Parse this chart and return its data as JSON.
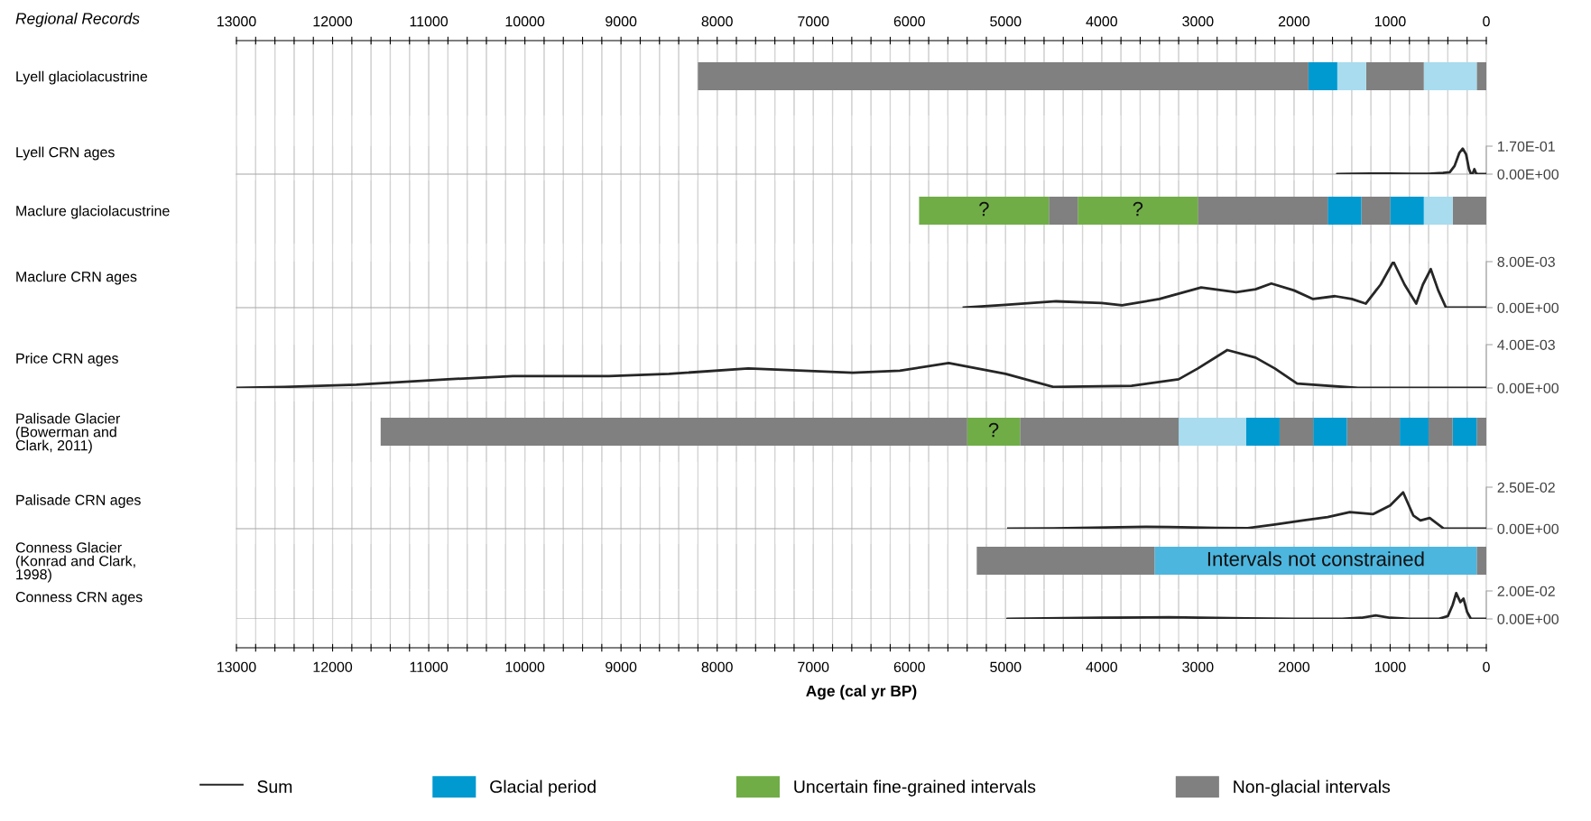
{
  "chart_data": [
    {
      "type": "bar",
      "title": "Regional Records",
      "legend": "bottom",
      "orientation": "horizontal",
      "stacked": true,
      "categories": [
        "Lyell glaciolacustrine"
      ],
      "xlim": [
        13000,
        0
      ],
      "x2lim": [
        13000,
        0
      ],
      "grid": "x",
      "x2ticks": [
        13000,
        {
          "value": 12800,
          "label": null
        },
        {
          "value": 12600,
          "label": null
        },
        {
          "value": 12400,
          "label": null
        },
        {
          "value": 12200,
          "label": null
        },
        12000,
        {
          "value": 11800,
          "label": null
        },
        {
          "value": 11600,
          "label": null
        },
        {
          "value": 11400,
          "label": null
        },
        {
          "value": 11200,
          "label": null
        },
        11000,
        {
          "value": 10800,
          "label": null
        },
        {
          "value": 10600,
          "label": null
        },
        {
          "value": 10400,
          "label": null
        },
        {
          "value": 10200,
          "label": null
        },
        10000,
        {
          "value": 9800,
          "label": null
        },
        {
          "value": 9600,
          "label": null
        },
        {
          "value": 9400,
          "label": null
        },
        {
          "value": 9200,
          "label": null
        },
        9000,
        {
          "value": 8800,
          "label": null
        },
        {
          "value": 8600,
          "label": null
        },
        {
          "value": 8400,
          "label": null
        },
        {
          "value": 8200,
          "label": null
        },
        8000,
        {
          "value": 7800,
          "label": null
        },
        {
          "value": 7600,
          "label": null
        },
        {
          "value": 7400,
          "label": null
        },
        {
          "value": 7200,
          "label": null
        },
        7000,
        {
          "value": 6800,
          "label": null
        },
        {
          "value": 6600,
          "label": null
        },
        {
          "value": 6400,
          "label": null
        },
        {
          "value": 6200,
          "label": null
        },
        6000,
        {
          "value": 5800,
          "label": null
        },
        {
          "value": 5600,
          "label": null
        },
        {
          "value": 5400,
          "label": null
        },
        {
          "value": 5200,
          "label": null
        },
        5000,
        {
          "value": 4800,
          "label": null
        },
        {
          "value": 4600,
          "label": null
        },
        {
          "value": 4400,
          "label": null
        },
        {
          "value": 4200,
          "label": null
        },
        4000,
        {
          "value": 3800,
          "label": null
        },
        {
          "value": 3600,
          "label": null
        },
        {
          "value": 3400,
          "label": null
        },
        {
          "value": 3200,
          "label": null
        },
        3000,
        {
          "value": 2800,
          "label": null
        },
        {
          "value": 2600,
          "label": null
        },
        {
          "value": 2400,
          "label": null
        },
        {
          "value": 2200,
          "label": null
        },
        2000,
        {
          "value": 1800,
          "label": null
        },
        {
          "value": 1600,
          "label": null
        },
        {
          "value": 1400,
          "label": null
        },
        {
          "value": 1200,
          "label": null
        },
        1000,
        {
          "value": 800,
          "label": null
        },
        {
          "value": 600,
          "label": null
        },
        {
          "value": 400,
          "label": null
        },
        {
          "value": 200,
          "label": null
        },
        0
      ],
      "series": [
        {
          "color": "#808080",
          "values": [
            100
          ]
        },
        {
          "color": "#a8dcee",
          "values": [
            550
          ]
        },
        {
          "color": "#808080",
          "values": [
            600
          ]
        },
        {
          "color": "#a8dcee",
          "values": [
            300
          ]
        },
        {
          "name": "Glacial period",
          "color": "#0099d0",
          "values": [
            300
          ]
        },
        {
          "color": "#808080",
          "values": [
            6350
          ]
        }
      ]
    },
    {
      "type": "line",
      "ylabel": "Lyell CRN ages",
      "xlim": [
        13000,
        0
      ],
      "ylim": [
        0,
        0.17
      ],
      "yticks": [
        {
          "value": 0,
          "label": "0.00E+00"
        },
        {
          "value": 0.17,
          "label": "1.70E-01"
        }
      ],
      "grid": "x",
      "tick_labels": "y",
      "xticks": [
        13000,
        12800,
        12600,
        12400,
        12200,
        12000,
        11800,
        11600,
        11400,
        11200,
        11000,
        10800,
        10600,
        10400,
        10200,
        10000,
        9800,
        9600,
        9400,
        9200,
        9000,
        8800,
        8600,
        8400,
        8200,
        8000,
        7800,
        7600,
        7400,
        7200,
        7000,
        6800,
        6600,
        6400,
        6200,
        6000,
        5800,
        5600,
        5400,
        5200,
        5000,
        4800,
        4600,
        4400,
        4200,
        4000,
        3800,
        3600,
        3400,
        3200,
        3000,
        2800,
        2600,
        2400,
        2200,
        2000,
        1800,
        1600,
        1400,
        1200,
        1000,
        800,
        600,
        400,
        200,
        0
      ],
      "x": [
        1550,
        1400,
        1200,
        1000,
        800,
        600,
        450,
        380,
        330,
        280,
        245,
        210,
        180,
        160,
        140,
        124,
        105,
        80,
        0
      ],
      "series": [
        {
          "name": "Sum",
          "color": "#262626",
          "values": [
            0,
            0.002,
            0.003,
            0.003,
            0.002,
            0.002,
            0.008,
            0.012,
            0.05,
            0.13,
            0.155,
            0.12,
            0.03,
            0.002,
            0.005,
            0.03,
            0.003,
            0,
            0
          ]
        }
      ]
    },
    {
      "type": "bar",
      "orientation": "horizontal",
      "stacked": true,
      "categories": [
        "Maclure glaciolacustrine"
      ],
      "xlim": [
        13000,
        0
      ],
      "grid": "x",
      "tick_labels": "y",
      "xticks": [
        13000,
        12800,
        12600,
        12400,
        12200,
        12000,
        11800,
        11600,
        11400,
        11200,
        11000,
        10800,
        10600,
        10400,
        10200,
        10000,
        9800,
        9600,
        9400,
        9200,
        9000,
        8800,
        8600,
        8400,
        8200,
        8000,
        7800,
        7600,
        7400,
        7200,
        7000,
        6800,
        6600,
        6400,
        6200,
        6000,
        5800,
        5600,
        5400,
        5200,
        5000,
        4800,
        4600,
        4400,
        4200,
        4000,
        3800,
        3600,
        3400,
        3200,
        3000,
        2800,
        2600,
        2400,
        2200,
        2000,
        1800,
        1600,
        1400,
        1200,
        1000,
        800,
        600,
        400,
        200,
        0
      ],
      "series": [
        {
          "color": "#808080",
          "values": [
            350
          ]
        },
        {
          "color": "#a8dcee",
          "values": [
            300
          ]
        },
        {
          "color": "#0099d0",
          "values": [
            350
          ]
        },
        {
          "color": "#808080",
          "values": [
            300
          ]
        },
        {
          "color": "#0099d0",
          "values": [
            350
          ]
        },
        {
          "color": "#808080",
          "values": [
            1350
          ]
        },
        {
          "name": "Uncertain fine-grained intervals",
          "color": "#70ad47",
          "values": [
            1250
          ],
          "value_labels": [
            "?"
          ]
        },
        {
          "color": "#808080",
          "values": [
            300
          ]
        },
        {
          "color": "#70ad47",
          "values": [
            1350
          ],
          "value_labels": [
            "?"
          ]
        }
      ]
    },
    {
      "type": "line",
      "ylabel": "Maclure CRN ages",
      "xlim": [
        13000,
        0
      ],
      "ylim": [
        0,
        0.008
      ],
      "yticks": [
        {
          "value": 0,
          "label": "0.00E+00"
        },
        {
          "value": 0.008,
          "label": "8.00E-03"
        }
      ],
      "grid": "x",
      "tick_labels": "y",
      "xticks": [
        13000,
        12800,
        12600,
        12400,
        12200,
        12000,
        11800,
        11600,
        11400,
        11200,
        11000,
        10800,
        10600,
        10400,
        10200,
        10000,
        9800,
        9600,
        9400,
        9200,
        9000,
        8800,
        8600,
        8400,
        8200,
        8000,
        7800,
        7600,
        7400,
        7200,
        7000,
        6800,
        6600,
        6400,
        6200,
        6000,
        5800,
        5600,
        5400,
        5200,
        5000,
        4800,
        4600,
        4400,
        4200,
        4000,
        3800,
        3600,
        3400,
        3200,
        3000,
        2800,
        2600,
        2400,
        2200,
        2000,
        1800,
        1600,
        1400,
        1200,
        1000,
        800,
        600,
        400,
        200,
        0
      ],
      "x": [
        5435,
        5000,
        4474,
        4000,
        3789,
        3400,
        2966,
        2602,
        2400,
        2236,
        2000,
        1802,
        1574,
        1400,
        1254,
        1100,
        967,
        850,
        729,
        660,
        578,
        500,
        419,
        0
      ],
      "series": [
        {
          "color": "#262626",
          "values": [
            0,
            0.0005,
            0.0011,
            0.0008,
            0.0004,
            0.0015,
            0.0035,
            0.0027,
            0.0032,
            0.0042,
            0.003,
            0.0015,
            0.002,
            0.0015,
            0.0007,
            0.004,
            0.008,
            0.004,
            0.0007,
            0.004,
            0.0067,
            0.003,
            0,
            0
          ]
        }
      ]
    },
    {
      "type": "line",
      "ylabel": "Price CRN ages",
      "xlim": [
        13000,
        0
      ],
      "ylim": [
        0,
        0.004
      ],
      "yticks": [
        {
          "value": 0,
          "label": "0.00E+00"
        },
        {
          "value": 0.004,
          "label": "4.00E-03"
        }
      ],
      "grid": "x",
      "tick_labels": "y",
      "xticks": [
        13000,
        12800,
        12600,
        12400,
        12200,
        12000,
        11800,
        11600,
        11400,
        11200,
        11000,
        10800,
        10600,
        10400,
        10200,
        10000,
        9800,
        9600,
        9400,
        9200,
        9000,
        8800,
        8600,
        8400,
        8200,
        8000,
        7800,
        7600,
        7400,
        7200,
        7000,
        6800,
        6600,
        6400,
        6200,
        6000,
        5800,
        5600,
        5400,
        5200,
        5000,
        4800,
        4600,
        4400,
        4200,
        4000,
        3800,
        3600,
        3400,
        3200,
        3000,
        2800,
        2600,
        2400,
        2200,
        2000,
        1800,
        1600,
        1400,
        1200,
        1000,
        800,
        600,
        400,
        200,
        0
      ],
      "x": [
        13000,
        12500,
        11750,
        10800,
        10123,
        9126,
        8500,
        7676,
        7100,
        6589,
        6100,
        5592,
        5000,
        4505,
        3690,
        3200,
        3000,
        2694,
        2400,
        2200,
        1968,
        1335,
        0
      ],
      "series": [
        {
          "color": "#262626",
          "values": [
            0,
            0.0001,
            0.0003,
            0.0008,
            0.0011,
            0.0011,
            0.0013,
            0.0018,
            0.0016,
            0.0014,
            0.0016,
            0.0023,
            0.0013,
            0.0001,
            0.0002,
            0.0008,
            0.0018,
            0.0035,
            0.0028,
            0.0018,
            0.0004,
            0,
            0
          ]
        }
      ]
    },
    {
      "type": "bar",
      "orientation": "horizontal",
      "stacked": true,
      "categories": [
        "Palisade Glacier\n(Bowerman and\nClark, 2011)"
      ],
      "xlim": [
        13000,
        0
      ],
      "grid": "x",
      "tick_labels": "y",
      "xticks": [
        13000,
        12800,
        12600,
        12400,
        12200,
        12000,
        11800,
        11600,
        11400,
        11200,
        11000,
        10800,
        10600,
        10400,
        10200,
        10000,
        9800,
        9600,
        9400,
        9200,
        9000,
        8800,
        8600,
        8400,
        8200,
        8000,
        7800,
        7600,
        7400,
        7200,
        7000,
        6800,
        6600,
        6400,
        6200,
        6000,
        5800,
        5600,
        5400,
        5200,
        5000,
        4800,
        4600,
        4400,
        4200,
        4000,
        3800,
        3600,
        3400,
        3200,
        3000,
        2800,
        2600,
        2400,
        2200,
        2000,
        1800,
        1600,
        1400,
        1200,
        1000,
        800,
        600,
        400,
        200,
        0
      ],
      "series": [
        {
          "color": "#808080",
          "values": [
            100
          ]
        },
        {
          "color": "#0099d0",
          "values": [
            250
          ]
        },
        {
          "color": "#808080",
          "values": [
            250
          ]
        },
        {
          "color": "#0099d0",
          "values": [
            300
          ]
        },
        {
          "color": "#808080",
          "values": [
            550
          ]
        },
        {
          "color": "#0099d0",
          "values": [
            350
          ]
        },
        {
          "color": "#808080",
          "values": [
            350
          ]
        },
        {
          "color": "#0099d0",
          "values": [
            350
          ]
        },
        {
          "color": "#a8dcee",
          "values": [
            700
          ]
        },
        {
          "color": "#808080",
          "values": [
            1650
          ]
        },
        {
          "color": "#70ad47",
          "values": [
            550
          ],
          "value_labels": [
            "?"
          ]
        },
        {
          "color": "#808080",
          "values": [
            6100
          ]
        }
      ]
    },
    {
      "type": "line",
      "ylabel": "Palisade CRN ages",
      "xlim": [
        13000,
        0
      ],
      "ylim": [
        0,
        0.025
      ],
      "yticks": [
        {
          "value": 0,
          "label": "0.00E+00"
        },
        {
          "value": 0.025,
          "label": "2.50E-02"
        }
      ],
      "grid": "x",
      "tick_labels": "y",
      "xticks": [
        13000,
        12800,
        12600,
        12400,
        12200,
        12000,
        11800,
        11600,
        11400,
        11200,
        11000,
        10800,
        10600,
        10400,
        10200,
        10000,
        9800,
        9600,
        9400,
        9200,
        9000,
        8800,
        8600,
        8400,
        8200,
        8000,
        7800,
        7600,
        7400,
        7200,
        7000,
        6800,
        6600,
        6400,
        6200,
        6000,
        5800,
        5600,
        5400,
        5200,
        5000,
        4800,
        4600,
        4400,
        4200,
        4000,
        3800,
        3600,
        3400,
        3200,
        3000,
        2800,
        2600,
        2400,
        2200,
        2000,
        1800,
        1600,
        1400,
        1200,
        1000,
        800,
        600,
        400,
        200,
        0
      ],
      "x": [
        4971,
        4500,
        3542,
        3300,
        2800,
        2482,
        2200,
        1910,
        1650,
        1420,
        1176,
        1000,
        865,
        760,
        685,
        589,
        441,
        0
      ],
      "series": [
        {
          "color": "#262626",
          "values": [
            0,
            0.0002,
            0.0012,
            0.001,
            0.0005,
            0.0004,
            0.0025,
            0.005,
            0.007,
            0.01,
            0.0088,
            0.014,
            0.0219,
            0.008,
            0.005,
            0.0065,
            0,
            0
          ]
        }
      ]
    },
    {
      "type": "bar",
      "orientation": "horizontal",
      "stacked": true,
      "categories": [
        "Conness Glacier\n(Konrad and Clark,\n1998)"
      ],
      "xlim": [
        13000,
        0
      ],
      "grid": "x",
      "tick_labels": "y",
      "xticks": [
        13000,
        12800,
        12600,
        12400,
        12200,
        12000,
        11800,
        11600,
        11400,
        11200,
        11000,
        10800,
        10600,
        10400,
        10200,
        10000,
        9800,
        9600,
        9400,
        9200,
        9000,
        8800,
        8600,
        8400,
        8200,
        8000,
        7800,
        7600,
        7400,
        7200,
        7000,
        6800,
        6600,
        6400,
        6200,
        6000,
        5800,
        5600,
        5400,
        5200,
        5000,
        4800,
        4600,
        4400,
        4200,
        4000,
        3800,
        3600,
        3400,
        3200,
        3000,
        2800,
        2600,
        2400,
        2200,
        2000,
        1800,
        1600,
        1400,
        1200,
        1000,
        800,
        600,
        400,
        200,
        0
      ],
      "series": [
        {
          "name": "Non-glacial intervals",
          "color": "#808080",
          "values": [
            100
          ]
        },
        {
          "color": "#4db6de",
          "values": [
            3350
          ],
          "value_labels": [
            "Intervals not constrained"
          ]
        },
        {
          "color": "#808080",
          "values": [
            1850
          ]
        }
      ]
    },
    {
      "type": "line",
      "ylabel": "Conness CRN ages",
      "xlabel": "Age (cal yr BP)",
      "xlim": [
        13000,
        0
      ],
      "ylim": [
        0,
        0.02
      ],
      "yticks": [
        {
          "value": 0,
          "label": "0.00E+00"
        },
        {
          "value": 0.02,
          "label": "2.00E-02"
        }
      ],
      "grid": "x",
      "xticks": [
        13000,
        {
          "value": 12800,
          "label": null
        },
        {
          "value": 12600,
          "label": null
        },
        {
          "value": 12400,
          "label": null
        },
        {
          "value": 12200,
          "label": null
        },
        12000,
        {
          "value": 11800,
          "label": null
        },
        {
          "value": 11600,
          "label": null
        },
        {
          "value": 11400,
          "label": null
        },
        {
          "value": 11200,
          "label": null
        },
        11000,
        {
          "value": 10800,
          "label": null
        },
        {
          "value": 10600,
          "label": null
        },
        {
          "value": 10400,
          "label": null
        },
        {
          "value": 10200,
          "label": null
        },
        10000,
        {
          "value": 9800,
          "label": null
        },
        {
          "value": 9600,
          "label": null
        },
        {
          "value": 9400,
          "label": null
        },
        {
          "value": 9200,
          "label": null
        },
        9000,
        {
          "value": 8800,
          "label": null
        },
        {
          "value": 8600,
          "label": null
        },
        {
          "value": 8400,
          "label": null
        },
        {
          "value": 8200,
          "label": null
        },
        8000,
        {
          "value": 7800,
          "label": null
        },
        {
          "value": 7600,
          "label": null
        },
        {
          "value": 7400,
          "label": null
        },
        {
          "value": 7200,
          "label": null
        },
        7000,
        {
          "value": 6800,
          "label": null
        },
        {
          "value": 6600,
          "label": null
        },
        {
          "value": 6400,
          "label": null
        },
        {
          "value": 6200,
          "label": null
        },
        6000,
        {
          "value": 5800,
          "label": null
        },
        {
          "value": 5600,
          "label": null
        },
        {
          "value": 5400,
          "label": null
        },
        {
          "value": 5200,
          "label": null
        },
        5000,
        {
          "value": 4800,
          "label": null
        },
        {
          "value": 4600,
          "label": null
        },
        {
          "value": 4400,
          "label": null
        },
        {
          "value": 4200,
          "label": null
        },
        4000,
        {
          "value": 3800,
          "label": null
        },
        {
          "value": 3600,
          "label": null
        },
        {
          "value": 3400,
          "label": null
        },
        {
          "value": 3200,
          "label": null
        },
        3000,
        {
          "value": 2800,
          "label": null
        },
        {
          "value": 2600,
          "label": null
        },
        {
          "value": 2400,
          "label": null
        },
        {
          "value": 2200,
          "label": null
        },
        2000,
        {
          "value": 1800,
          "label": null
        },
        {
          "value": 1600,
          "label": null
        },
        {
          "value": 1400,
          "label": null
        },
        {
          "value": 1200,
          "label": null
        },
        1000,
        {
          "value": 800,
          "label": null
        },
        {
          "value": 600,
          "label": null
        },
        {
          "value": 400,
          "label": null
        },
        {
          "value": 200,
          "label": null
        },
        0
      ],
      "x": [
        4980,
        4000,
        3300,
        2500,
        2000,
        1500,
        1300,
        1150,
        1000,
        800,
        500,
        400,
        350,
        313,
        270,
        237,
        200,
        160,
        0
      ],
      "series": [
        {
          "color": "#262626",
          "values": [
            0,
            0.0008,
            0.0012,
            0.0004,
            0.0001,
            0.0001,
            0.0008,
            0.0025,
            0.0008,
            0,
            0,
            0.002,
            0.01,
            0.0185,
            0.012,
            0.0145,
            0.005,
            0,
            0
          ]
        }
      ]
    }
  ]
}
